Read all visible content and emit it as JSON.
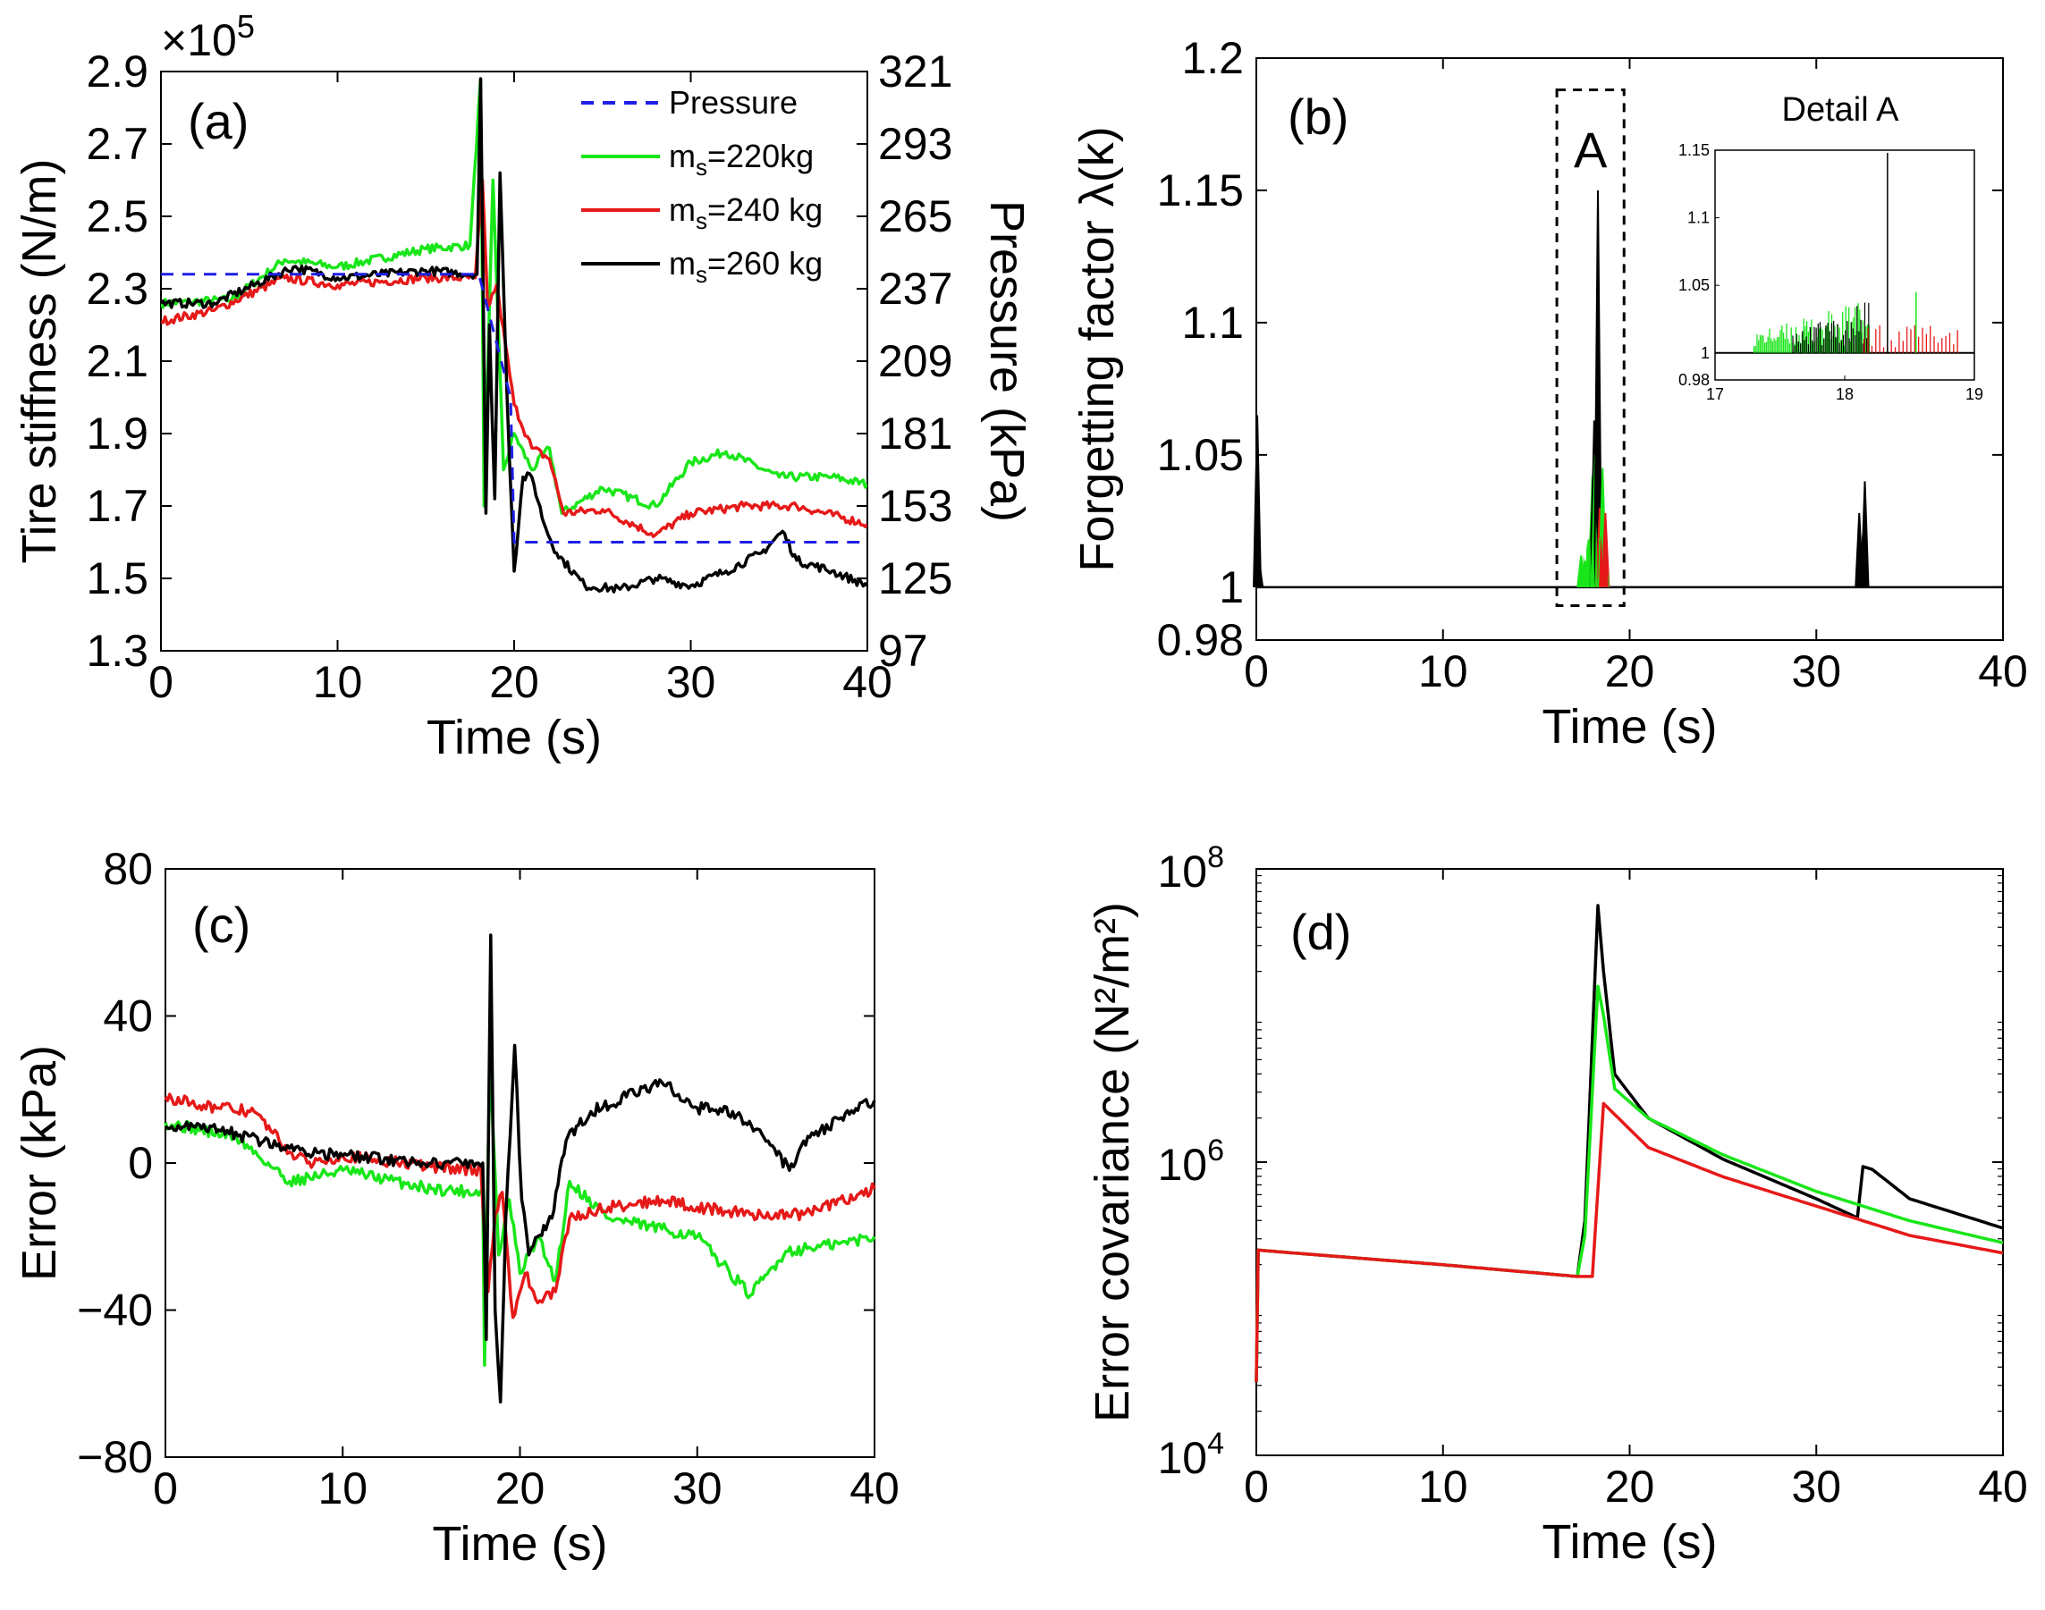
{
  "chart_data": [
    {
      "id": "a",
      "type": "line",
      "panel_label": "(a)",
      "xlabel": "Time (s)",
      "ylabel": "Tire stiffness (N/m)",
      "ylabel_right": "Pressure (kPa)",
      "exponent_label": "×10",
      "exponent_power": "5",
      "xlim": [
        0,
        40
      ],
      "ylim": [
        1.3,
        2.9
      ],
      "ylim_right": [
        97,
        321
      ],
      "xticks": [
        "0",
        "10",
        "20",
        "30",
        "40"
      ],
      "yticks": [
        "1.3",
        "1.5",
        "1.7",
        "1.9",
        "2.1",
        "2.3",
        "2.5",
        "2.7",
        "2.9"
      ],
      "yticks_right": [
        "97",
        "125",
        "153",
        "181",
        "209",
        "237",
        "265",
        "293",
        "321"
      ],
      "legend": [
        {
          "prefix": "",
          "sub": "",
          "suffix": "Pressure",
          "color": "#1f1fe6",
          "dash": true
        },
        {
          "prefix": "m",
          "sub": "s",
          "suffix": "=220kg",
          "color": "#19e619",
          "dash": false
        },
        {
          "prefix": "m",
          "sub": "s",
          "suffix": "=240 kg",
          "color": "#e61919",
          "dash": false
        },
        {
          "prefix": "m",
          "sub": "s",
          "suffix": "=260 kg",
          "color": "#000000",
          "dash": false
        }
      ],
      "series": [
        {
          "name": "Pressure",
          "color": "#1f1fe6",
          "dash": true,
          "points": [
            [
              0,
              2.34
            ],
            [
              18,
              2.34
            ],
            [
              19.8,
              2.0
            ],
            [
              20,
              1.6
            ],
            [
              40,
              1.6
            ]
          ]
        },
        {
          "name": "ms=220kg",
          "color": "#19e619",
          "noise": 0.012,
          "points": [
            [
              0,
              2.26
            ],
            [
              4,
              2.27
            ],
            [
              7,
              2.38
            ],
            [
              10,
              2.36
            ],
            [
              15,
              2.41
            ],
            [
              17.5,
              2.42
            ],
            [
              18.1,
              2.88
            ],
            [
              18.3,
              1.7
            ],
            [
              18.8,
              2.6
            ],
            [
              19.4,
              1.8
            ],
            [
              20,
              1.9
            ],
            [
              21,
              1.8
            ],
            [
              22,
              1.86
            ],
            [
              22.7,
              1.68
            ],
            [
              25,
              1.75
            ],
            [
              28,
              1.7
            ],
            [
              30,
              1.82
            ],
            [
              32,
              1.85
            ],
            [
              35,
              1.78
            ],
            [
              38,
              1.78
            ],
            [
              40,
              1.76
            ]
          ]
        },
        {
          "name": "ms=240kg",
          "color": "#e61919",
          "noise": 0.012,
          "points": [
            [
              0,
              2.21
            ],
            [
              3,
              2.24
            ],
            [
              7,
              2.33
            ],
            [
              10,
              2.31
            ],
            [
              15,
              2.33
            ],
            [
              17.8,
              2.33
            ],
            [
              18.2,
              2.6
            ],
            [
              18.5,
              2.25
            ],
            [
              19,
              2.31
            ],
            [
              20,
              1.98
            ],
            [
              21,
              1.86
            ],
            [
              22,
              1.83
            ],
            [
              22.8,
              1.68
            ],
            [
              25,
              1.69
            ],
            [
              28,
              1.62
            ],
            [
              30,
              1.68
            ],
            [
              33,
              1.7
            ],
            [
              36,
              1.7
            ],
            [
              40,
              1.65
            ]
          ]
        },
        {
          "name": "ms=260kg",
          "color": "#000000",
          "noise": 0.012,
          "points": [
            [
              0,
              2.26
            ],
            [
              3,
              2.26
            ],
            [
              7.5,
              2.36
            ],
            [
              10,
              2.33
            ],
            [
              15,
              2.35
            ],
            [
              17.9,
              2.34
            ],
            [
              18.1,
              2.88
            ],
            [
              18.4,
              1.68
            ],
            [
              18.6,
              2.2
            ],
            [
              18.9,
              1.72
            ],
            [
              19.2,
              2.62
            ],
            [
              19.6,
              2.0
            ],
            [
              20,
              1.52
            ],
            [
              20.5,
              1.78
            ],
            [
              21,
              1.78
            ],
            [
              21.7,
              1.65
            ],
            [
              22.4,
              1.57
            ],
            [
              24,
              1.48
            ],
            [
              26,
              1.47
            ],
            [
              28,
              1.5
            ],
            [
              30,
              1.48
            ],
            [
              32,
              1.52
            ],
            [
              34,
              1.57
            ],
            [
              35.2,
              1.63
            ],
            [
              36,
              1.55
            ],
            [
              38,
              1.52
            ],
            [
              40,
              1.48
            ]
          ]
        }
      ]
    },
    {
      "id": "b",
      "type": "line",
      "panel_label": "(b)",
      "xlabel": "Time (s)",
      "ylabel": "Forgetting factor λ(k)",
      "xlim": [
        0,
        40
      ],
      "ylim": [
        0.98,
        1.2
      ],
      "xticks": [
        "0",
        "10",
        "20",
        "30",
        "40"
      ],
      "yticks": [
        {
          "value": 0.98,
          "label": "0.98"
        },
        {
          "value": 1.0,
          "label": "1"
        },
        {
          "value": 1.05,
          "label": "1.05"
        },
        {
          "value": 1.1,
          "label": "1.1"
        },
        {
          "value": 1.15,
          "label": "1.15"
        },
        {
          "value": 1.2,
          "label": "1.2"
        }
      ],
      "annotation": "A",
      "baseline": 1.0,
      "spikes": [
        {
          "t": 0.05,
          "v": 1.065,
          "color": "#000000"
        },
        {
          "t": 0.15,
          "v": 1.01,
          "color": "#000000"
        },
        {
          "t": 17.4,
          "v": 1.012,
          "color": "#19e619"
        },
        {
          "t": 17.6,
          "v": 1.01,
          "color": "#19e619"
        },
        {
          "t": 17.8,
          "v": 1.018,
          "color": "#19e619"
        },
        {
          "t": 17.9,
          "v": 1.02,
          "color": "#19e619"
        },
        {
          "t": 18.0,
          "v": 1.042,
          "color": "#19e619"
        },
        {
          "t": 18.05,
          "v": 1.044,
          "color": "#000000"
        },
        {
          "t": 18.1,
          "v": 1.063,
          "color": "#000000"
        },
        {
          "t": 18.15,
          "v": 1.05,
          "color": "#19e619"
        },
        {
          "t": 18.3,
          "v": 1.15,
          "color": "#000000"
        },
        {
          "t": 18.4,
          "v": 1.03,
          "color": "#e61919"
        },
        {
          "t": 18.55,
          "v": 1.045,
          "color": "#19e619"
        },
        {
          "t": 18.7,
          "v": 1.028,
          "color": "#e61919"
        },
        {
          "t": 32.3,
          "v": 1.028,
          "color": "#000000"
        },
        {
          "t": 32.5,
          "v": 1.02,
          "color": "#000000"
        },
        {
          "t": 32.6,
          "v": 1.04,
          "color": "#000000"
        }
      ],
      "inset": {
        "title": "Detail A",
        "xlim": [
          17,
          19
        ],
        "ylim": [
          0.98,
          1.15
        ],
        "xticks": [
          "17",
          "18",
          "19"
        ],
        "yticks": [
          {
            "value": 0.98,
            "label": "0.98"
          },
          {
            "value": 1.0,
            "label": "1"
          },
          {
            "value": 1.05,
            "label": "1.05"
          },
          {
            "value": 1.1,
            "label": "1.1"
          },
          {
            "value": 1.15,
            "label": "1.15"
          }
        ]
      }
    },
    {
      "id": "c",
      "type": "line",
      "panel_label": "(c)",
      "xlabel": "Time (s)",
      "ylabel": "Error (kPa)",
      "xlim": [
        0,
        40
      ],
      "ylim": [
        -80,
        80
      ],
      "xticks": [
        "0",
        "10",
        "20",
        "30",
        "40"
      ],
      "yticks": [
        {
          "value": -80,
          "label": "−80"
        },
        {
          "value": -40,
          "label": "−40"
        },
        {
          "value": 0,
          "label": "0"
        },
        {
          "value": 40,
          "label": "40"
        },
        {
          "value": 80,
          "label": "80"
        }
      ],
      "series": [
        {
          "name": "ms=220kg",
          "color": "#19e619",
          "noise": 1.6,
          "points": [
            [
              0,
              11
            ],
            [
              4,
              7
            ],
            [
              7,
              -5
            ],
            [
              10,
              -2
            ],
            [
              15,
              -7
            ],
            [
              17.9,
              -8
            ],
            [
              18,
              -55
            ],
            [
              18.3,
              28
            ],
            [
              18.8,
              -25
            ],
            [
              19.4,
              -10
            ],
            [
              20,
              -30
            ],
            [
              21,
              -20
            ],
            [
              22,
              -32
            ],
            [
              22.8,
              -5
            ],
            [
              25,
              -15
            ],
            [
              28,
              -18
            ],
            [
              30,
              -20
            ],
            [
              33,
              -36
            ],
            [
              35,
              -24
            ],
            [
              38,
              -22
            ],
            [
              40,
              -20
            ]
          ]
        },
        {
          "name": "ms=240kg",
          "color": "#e61919",
          "noise": 1.6,
          "points": [
            [
              0,
              18
            ],
            [
              3,
              15
            ],
            [
              5,
              14
            ],
            [
              7,
              3
            ],
            [
              8,
              0
            ],
            [
              10,
              2
            ],
            [
              15,
              -1
            ],
            [
              17.8,
              -2
            ],
            [
              18.2,
              -35
            ],
            [
              18.6,
              -14
            ],
            [
              19,
              -8
            ],
            [
              19.6,
              -42
            ],
            [
              20.3,
              -30
            ],
            [
              21,
              -38
            ],
            [
              22,
              -35
            ],
            [
              22.8,
              -15
            ],
            [
              25,
              -12
            ],
            [
              28,
              -10
            ],
            [
              30,
              -12
            ],
            [
              33,
              -14
            ],
            [
              36,
              -14
            ],
            [
              40,
              -7
            ]
          ]
        },
        {
          "name": "ms=260kg",
          "color": "#000000",
          "noise": 1.6,
          "points": [
            [
              0,
              10
            ],
            [
              3,
              9
            ],
            [
              7,
              4
            ],
            [
              10,
              2
            ],
            [
              15,
              0
            ],
            [
              17.9,
              0
            ],
            [
              18.1,
              -48
            ],
            [
              18.35,
              62
            ],
            [
              18.6,
              -40
            ],
            [
              18.9,
              -65
            ],
            [
              19.2,
              -15
            ],
            [
              19.7,
              32
            ],
            [
              20.1,
              -10
            ],
            [
              20.5,
              -25
            ],
            [
              21,
              -20
            ],
            [
              21.8,
              -15
            ],
            [
              22.6,
              6
            ],
            [
              24,
              14
            ],
            [
              26,
              18
            ],
            [
              28,
              22
            ],
            [
              30,
              15
            ],
            [
              32,
              14
            ],
            [
              34,
              6
            ],
            [
              35.2,
              -2
            ],
            [
              36,
              6
            ],
            [
              38,
              12
            ],
            [
              40,
              17
            ]
          ]
        }
      ]
    },
    {
      "id": "d",
      "type": "line",
      "panel_label": "(d)",
      "xlabel": "Time (s)",
      "ylabel": "Error covariance (N²/m²)",
      "yscale": "log",
      "xlim": [
        0,
        40
      ],
      "ylim_log10": [
        4,
        8
      ],
      "xticks": [
        "0",
        "10",
        "20",
        "30",
        "40"
      ],
      "yticks": [
        {
          "exp": 4,
          "label": "10",
          "power": "4"
        },
        {
          "exp": 6,
          "label": "10",
          "power": "6"
        },
        {
          "exp": 8,
          "label": "10",
          "power": "8"
        }
      ],
      "series": [
        {
          "name": "ms=220kg",
          "color": "#19e619",
          "points_log10": [
            [
              0,
              4.5
            ],
            [
              0.1,
              5.4
            ],
            [
              3,
              5.37
            ],
            [
              10,
              5.3
            ],
            [
              17.2,
              5.22
            ],
            [
              17.6,
              5.5
            ],
            [
              18.3,
              7.2
            ],
            [
              18.6,
              7.0
            ],
            [
              19.2,
              6.5
            ],
            [
              21,
              6.3
            ],
            [
              25,
              6.05
            ],
            [
              30,
              5.8
            ],
            [
              35,
              5.6
            ],
            [
              40,
              5.45
            ]
          ]
        },
        {
          "name": "ms=240kg",
          "color": "#e61919",
          "points_log10": [
            [
              0,
              4.5
            ],
            [
              0.1,
              5.4
            ],
            [
              3,
              5.37
            ],
            [
              10,
              5.3
            ],
            [
              17.2,
              5.22
            ],
            [
              18,
              5.22
            ],
            [
              18.6,
              6.4
            ],
            [
              19,
              6.35
            ],
            [
              21,
              6.1
            ],
            [
              25,
              5.9
            ],
            [
              30,
              5.7
            ],
            [
              35,
              5.5
            ],
            [
              40,
              5.38
            ]
          ]
        },
        {
          "name": "ms=260kg",
          "color": "#000000",
          "points_log10": [
            [
              0,
              4.5
            ],
            [
              0.1,
              5.4
            ],
            [
              3,
              5.37
            ],
            [
              10,
              5.3
            ],
            [
              17.2,
              5.22
            ],
            [
              17.6,
              5.6
            ],
            [
              18.3,
              7.75
            ],
            [
              18.6,
              7.3
            ],
            [
              19.2,
              6.6
            ],
            [
              21,
              6.3
            ],
            [
              25,
              6.02
            ],
            [
              30,
              5.75
            ],
            [
              32.2,
              5.62
            ],
            [
              32.5,
              5.97
            ],
            [
              33,
              5.95
            ],
            [
              35,
              5.75
            ],
            [
              40,
              5.55
            ]
          ]
        }
      ]
    }
  ]
}
